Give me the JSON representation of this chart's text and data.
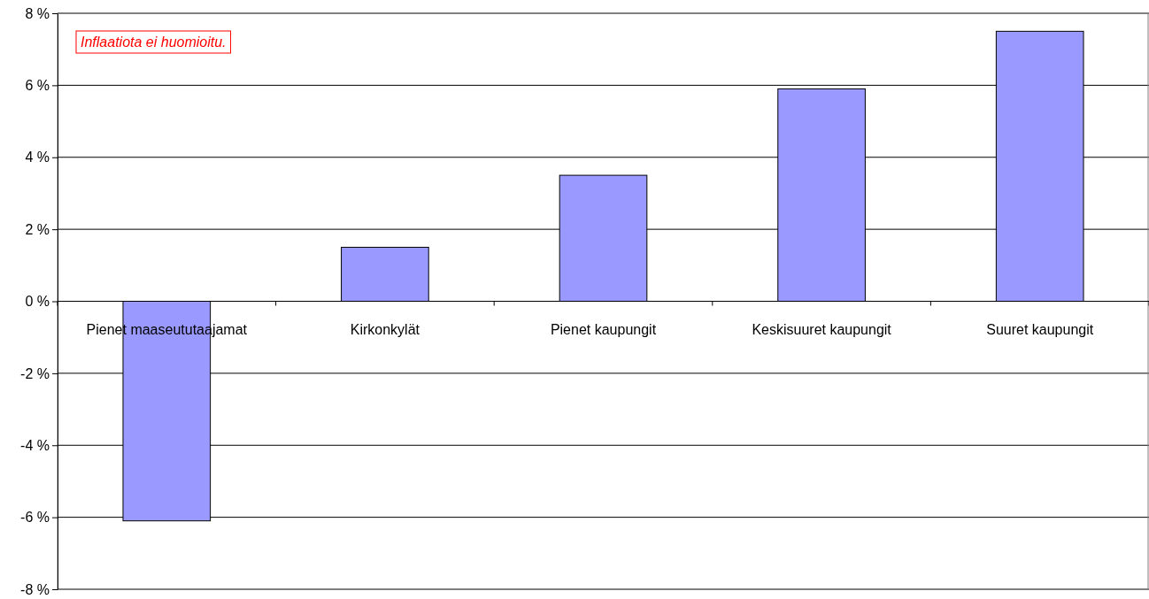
{
  "chart_data": {
    "type": "bar",
    "categories": [
      "Pienet maaseututaajamat",
      "Kirkonkylät",
      "Pienet kaupungit",
      "Keskisuuret kaupungit",
      "Suuret kaupungit"
    ],
    "values": [
      -6.1,
      1.5,
      3.5,
      5.9,
      7.5
    ],
    "color": "#9999ff",
    "ylim": [
      -8,
      8
    ],
    "yticks": [
      {
        "value": -8,
        "label": "-8 %"
      },
      {
        "value": -6,
        "label": "-6 %"
      },
      {
        "value": -4,
        "label": "-4 %"
      },
      {
        "value": -2,
        "label": "-2 %"
      },
      {
        "value": 0,
        "label": "0 %"
      },
      {
        "value": 2,
        "label": "2 %"
      },
      {
        "value": 4,
        "label": "4 %"
      },
      {
        "value": 6,
        "label": "6 %"
      },
      {
        "value": 8,
        "label": "8 %"
      }
    ],
    "grid": "y",
    "annotations": [
      "Inflaatiota ei huomioitu."
    ]
  }
}
